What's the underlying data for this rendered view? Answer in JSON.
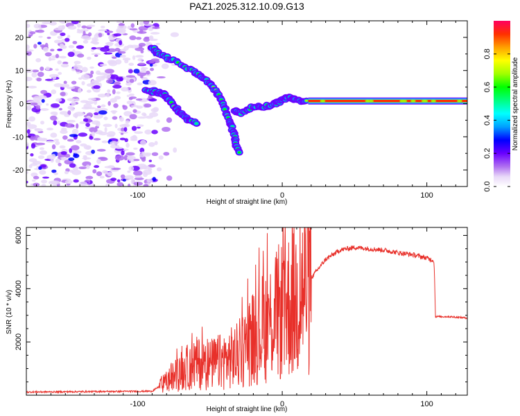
{
  "title": "PAZ1.2025.312.10.09.G13",
  "chart_data": [
    {
      "type": "heatmap",
      "name": "spectrogram",
      "xlabel": "Height of straight line (km)",
      "ylabel": "Frequency (Hz)",
      "xlim": [
        -177,
        128
      ],
      "ylim": [
        -25,
        25
      ],
      "xticks": [
        -100,
        0,
        100
      ],
      "yticks": [
        -20,
        -10,
        0,
        10,
        20
      ],
      "colorbar": {
        "label": "Normalized spectral amplitude",
        "range": [
          0,
          1
        ],
        "ticks": [
          0.0,
          0.2,
          0.4,
          0.6,
          0.8
        ],
        "colors": [
          "#ffffff",
          "#e8d8f8",
          "#b070f0",
          "#6a00ff",
          "#0000ff",
          "#00a0ff",
          "#00ffff",
          "#00ff80",
          "#00ff00",
          "#a0ff00",
          "#ffff00",
          "#ffa000",
          "#ff3000",
          "#ff0060"
        ]
      },
      "features": [
        {
          "name": "dominant-tone",
          "x_range": [
            18,
            128
          ],
          "freq_hz": 0.8,
          "amplitude": 0.95
        },
        {
          "name": "upper-branch",
          "points": [
            [
              -90,
              17
            ],
            [
              -85,
              15
            ],
            [
              -75,
              13
            ],
            [
              -62,
              10
            ],
            [
              -55,
              8
            ],
            [
              -48,
              5
            ],
            [
              -43,
              2
            ],
            [
              -40,
              -1
            ],
            [
              -37,
              -5
            ],
            [
              -34,
              -8
            ],
            [
              -32,
              -12
            ],
            [
              -30,
              -15
            ]
          ]
        },
        {
          "name": "lower-branch",
          "points": [
            [
              -95,
              4
            ],
            [
              -88,
              3.5
            ],
            [
              -82,
              3
            ],
            [
              -78,
              1
            ],
            [
              -74,
              -1
            ],
            [
              -70,
              -3
            ],
            [
              -65,
              -5
            ],
            [
              -58,
              -6
            ]
          ]
        },
        {
          "name": "middle-segment",
          "points": [
            [
              -33,
              -2
            ],
            [
              -28,
              -3
            ],
            [
              -20,
              -1
            ],
            [
              -12,
              -1
            ],
            [
              -5,
              0
            ],
            [
              0,
              1
            ],
            [
              5,
              2
            ],
            [
              10,
              1
            ],
            [
              18,
              0.8
            ]
          ]
        }
      ]
    },
    {
      "type": "line",
      "name": "snr",
      "xlabel": "Height of straight line (km)",
      "ylabel": "SNR (10 * v/v)",
      "xlim": [
        -177,
        128
      ],
      "ylim": [
        0,
        6300
      ],
      "xticks": [
        -100,
        0,
        100
      ],
      "yticks": [
        2000,
        4000,
        6000
      ],
      "line_color": "#e8302a",
      "envelope": {
        "x": [
          -177,
          -90,
          -80,
          -70,
          -60,
          -50,
          -40,
          -30,
          -20,
          -10,
          0,
          10,
          20,
          30,
          40,
          50,
          60,
          70,
          80,
          90,
          100,
          105,
          106,
          115,
          128
        ],
        "y": [
          120,
          150,
          500,
          900,
          1200,
          1150,
          1300,
          1500,
          2200,
          2700,
          3200,
          3600,
          4400,
          5100,
          5450,
          5550,
          5500,
          5450,
          5350,
          5280,
          5150,
          5050,
          2950,
          2950,
          2900
        ]
      }
    }
  ]
}
